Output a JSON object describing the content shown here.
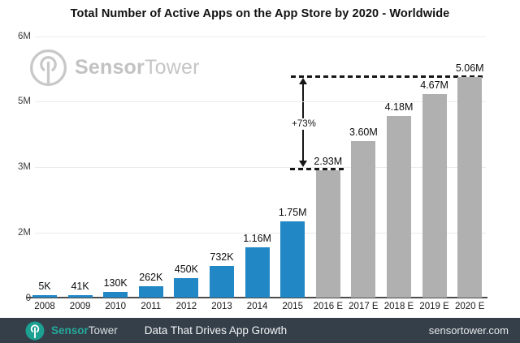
{
  "page_title": "Total Number of Active Apps on the App Store by 2020 - Worldwide",
  "colors": {
    "bar_actual": "#2187c5",
    "bar_estimate": "#b0b0b0",
    "accent_teal": "#1ba091",
    "footer_background": "#343f49",
    "watermark_gray": "#c5c5c5",
    "annotation_black": "#161616"
  },
  "watermark": {
    "brand_bold": "Sensor",
    "brand_regular": "Tower"
  },
  "chart_data": {
    "type": "bar",
    "title": "Total Number of Active Apps on the App Store by 2020 - Worldwide",
    "categories": [
      "2008",
      "2009",
      "2010",
      "2011",
      "2012",
      "2013",
      "2014",
      "2015",
      "2016 E",
      "2017 E",
      "2018 E",
      "2019 E",
      "2020 E"
    ],
    "values": [
      5000,
      41000,
      130000,
      262000,
      450000,
      732000,
      1160000,
      1750000,
      2930000,
      3600000,
      4180000,
      4670000,
      5060000
    ],
    "value_labels": [
      "5K",
      "41K",
      "130K",
      "262K",
      "450K",
      "732K",
      "1.16M",
      "1.75M",
      "2.93M",
      "3.60M",
      "4.18M",
      "4.67M",
      "5.06M"
    ],
    "estimated": [
      false,
      false,
      false,
      false,
      false,
      false,
      false,
      false,
      true,
      true,
      true,
      true,
      true
    ],
    "y_ticks": [
      "6M",
      "5M",
      "3M",
      "2M",
      "0"
    ],
    "ylim": [
      0,
      6000000
    ],
    "grid": "horizontal",
    "legend": "none",
    "annotation": {
      "label": "+73%",
      "from_value_label": "2.93M",
      "to_value_label": "5.06M"
    }
  },
  "footer": {
    "brand_bold": "Sensor",
    "brand_regular": "Tower",
    "tagline": "Data That Drives App Growth",
    "url": "sensortower.com"
  }
}
